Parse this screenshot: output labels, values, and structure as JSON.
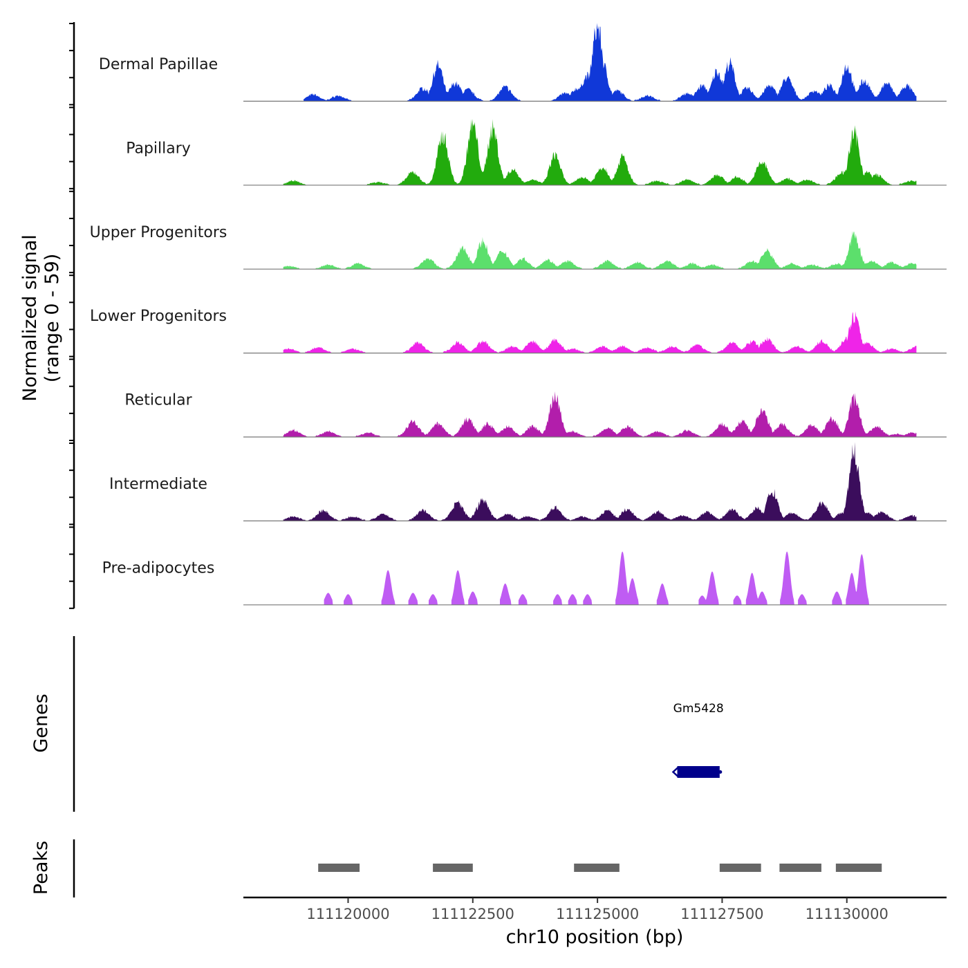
{
  "chart_data": {
    "type": "area",
    "title": "",
    "signal_ylabel_line1": "Normalized signal",
    "signal_ylabel_line2": "(range 0 - 59)",
    "ylim": [
      0,
      59
    ],
    "xlabel": "chr10 position (bp)",
    "xlim": [
      111117900,
      111132000
    ],
    "x_ticks": [
      111120000,
      111122500,
      111125000,
      111127500,
      111130000
    ],
    "x_tick_labels": [
      "111120000",
      "111122500",
      "111125000",
      "111127500",
      "111130000"
    ],
    "tracks": [
      {
        "name": "Dermal Papillae",
        "color": "#1038d8",
        "peaks": [
          [
            111119300,
            5
          ],
          [
            111119800,
            4
          ],
          [
            111121500,
            10
          ],
          [
            111121800,
            28
          ],
          [
            111122150,
            14
          ],
          [
            111122400,
            9
          ],
          [
            111123150,
            11
          ],
          [
            111124350,
            6
          ],
          [
            111124600,
            10
          ],
          [
            111124800,
            20
          ],
          [
            111125000,
            59
          ],
          [
            111125100,
            30
          ],
          [
            111125400,
            8
          ],
          [
            111126000,
            4
          ],
          [
            111126800,
            6
          ],
          [
            111127100,
            12
          ],
          [
            111127400,
            24
          ],
          [
            111127650,
            30
          ],
          [
            111128000,
            10
          ],
          [
            111128450,
            12
          ],
          [
            111128800,
            18
          ],
          [
            111129350,
            8
          ],
          [
            111129650,
            12
          ],
          [
            111130000,
            28
          ],
          [
            111130350,
            16
          ],
          [
            111130800,
            14
          ],
          [
            111131200,
            12
          ]
        ]
      },
      {
        "name": "Papillary",
        "color": "#22ab0d",
        "peaks": [
          [
            111118900,
            3
          ],
          [
            111120600,
            2
          ],
          [
            111121300,
            10
          ],
          [
            111121900,
            40
          ],
          [
            111122500,
            48
          ],
          [
            111122900,
            45
          ],
          [
            111123300,
            12
          ],
          [
            111123700,
            4
          ],
          [
            111124150,
            24
          ],
          [
            111124700,
            6
          ],
          [
            111125100,
            14
          ],
          [
            111125500,
            22
          ],
          [
            111126200,
            3
          ],
          [
            111126800,
            4
          ],
          [
            111127400,
            8
          ],
          [
            111127800,
            6
          ],
          [
            111128300,
            18
          ],
          [
            111128800,
            5
          ],
          [
            111129200,
            4
          ],
          [
            111129900,
            10
          ],
          [
            111130150,
            41
          ],
          [
            111130400,
            10
          ],
          [
            111130600,
            8
          ],
          [
            111131300,
            3
          ]
        ]
      },
      {
        "name": "Upper Progenitors",
        "color": "#5cdf6c",
        "peaks": [
          [
            111118800,
            2
          ],
          [
            111119600,
            3
          ],
          [
            111120200,
            4
          ],
          [
            111121600,
            8
          ],
          [
            111122300,
            16
          ],
          [
            111122700,
            22
          ],
          [
            111123100,
            14
          ],
          [
            111123500,
            8
          ],
          [
            111124000,
            7
          ],
          [
            111124400,
            6
          ],
          [
            111125200,
            6
          ],
          [
            111125800,
            5
          ],
          [
            111126400,
            6
          ],
          [
            111126900,
            4
          ],
          [
            111127300,
            3
          ],
          [
            111128100,
            6
          ],
          [
            111128400,
            14
          ],
          [
            111128900,
            4
          ],
          [
            111129300,
            3
          ],
          [
            111129800,
            4
          ],
          [
            111130150,
            27
          ],
          [
            111130500,
            6
          ],
          [
            111130900,
            5
          ],
          [
            111131300,
            4
          ]
        ]
      },
      {
        "name": "Lower Progenitors",
        "color": "#ef24e8",
        "peaks": [
          [
            111118800,
            3
          ],
          [
            111119400,
            4
          ],
          [
            111120100,
            3
          ],
          [
            111121400,
            8
          ],
          [
            111122200,
            8
          ],
          [
            111122700,
            9
          ],
          [
            111123300,
            5
          ],
          [
            111123700,
            9
          ],
          [
            111124150,
            10
          ],
          [
            111124500,
            3
          ],
          [
            111125100,
            5
          ],
          [
            111125500,
            5
          ],
          [
            111126000,
            4
          ],
          [
            111126500,
            5
          ],
          [
            111127000,
            6
          ],
          [
            111127700,
            8
          ],
          [
            111128100,
            9
          ],
          [
            111128400,
            11
          ],
          [
            111129000,
            5
          ],
          [
            111129500,
            9
          ],
          [
            111130000,
            11
          ],
          [
            111130150,
            29
          ],
          [
            111130400,
            8
          ],
          [
            111130900,
            3
          ],
          [
            111131400,
            5
          ]
        ]
      },
      {
        "name": "Reticular",
        "color": "#b21eab",
        "peaks": [
          [
            111118900,
            5
          ],
          [
            111119600,
            4
          ],
          [
            111120400,
            3
          ],
          [
            111121300,
            12
          ],
          [
            111121800,
            10
          ],
          [
            111122400,
            14
          ],
          [
            111122800,
            10
          ],
          [
            111123200,
            8
          ],
          [
            111123700,
            8
          ],
          [
            111124150,
            33
          ],
          [
            111124500,
            4
          ],
          [
            111125200,
            7
          ],
          [
            111125600,
            8
          ],
          [
            111126200,
            4
          ],
          [
            111126800,
            5
          ],
          [
            111127500,
            10
          ],
          [
            111127900,
            12
          ],
          [
            111128300,
            20
          ],
          [
            111128700,
            10
          ],
          [
            111129300,
            9
          ],
          [
            111129700,
            14
          ],
          [
            111130150,
            30
          ],
          [
            111130600,
            8
          ],
          [
            111131000,
            2
          ],
          [
            111131300,
            3
          ]
        ]
      },
      {
        "name": "Intermediate",
        "color": "#3b0d5c",
        "peaks": [
          [
            111118900,
            3
          ],
          [
            111119500,
            8
          ],
          [
            111120100,
            3
          ],
          [
            111120700,
            5
          ],
          [
            111121500,
            8
          ],
          [
            111122200,
            14
          ],
          [
            111122700,
            16
          ],
          [
            111123200,
            5
          ],
          [
            111123600,
            3
          ],
          [
            111124150,
            10
          ],
          [
            111124700,
            3
          ],
          [
            111125200,
            8
          ],
          [
            111125600,
            9
          ],
          [
            111126200,
            7
          ],
          [
            111126700,
            4
          ],
          [
            111127200,
            7
          ],
          [
            111127700,
            9
          ],
          [
            111128200,
            10
          ],
          [
            111128500,
            24
          ],
          [
            111128900,
            6
          ],
          [
            111129500,
            14
          ],
          [
            111129900,
            6
          ],
          [
            111130150,
            55
          ],
          [
            111130400,
            6
          ],
          [
            111130700,
            7
          ],
          [
            111131300,
            4
          ]
        ]
      },
      {
        "name": "Pre-adipocytes",
        "color": "#bf5cf3",
        "peaks": [
          [
            111119600,
            9
          ],
          [
            111120000,
            8
          ],
          [
            111120800,
            26
          ],
          [
            111121300,
            9
          ],
          [
            111121700,
            8
          ],
          [
            111122200,
            26
          ],
          [
            111122500,
            10
          ],
          [
            111123150,
            16
          ],
          [
            111123500,
            8
          ],
          [
            111124200,
            8
          ],
          [
            111124500,
            8
          ],
          [
            111124800,
            8
          ],
          [
            111125500,
            40
          ],
          [
            111125700,
            20
          ],
          [
            111126300,
            16
          ],
          [
            111127100,
            7
          ],
          [
            111127300,
            25
          ],
          [
            111127800,
            7
          ],
          [
            111128100,
            24
          ],
          [
            111128300,
            10
          ],
          [
            111128800,
            40
          ],
          [
            111129100,
            8
          ],
          [
            111129800,
            10
          ],
          [
            111130100,
            24
          ],
          [
            111130300,
            38
          ]
        ]
      }
    ],
    "genes_track_label": "Genes",
    "genes": [
      {
        "name": "Gm5428",
        "start": 111126600,
        "end": 111127450,
        "strand": "-",
        "color": "#00008b"
      }
    ],
    "peaks_track_label": "Peaks",
    "peak_regions": [
      [
        111119400,
        111120230
      ],
      [
        111121700,
        111122500
      ],
      [
        111124530,
        111125440
      ],
      [
        111127450,
        111128280
      ],
      [
        111128650,
        111129490
      ],
      [
        111129780,
        111130700
      ]
    ],
    "peak_region_color": "#666666"
  }
}
